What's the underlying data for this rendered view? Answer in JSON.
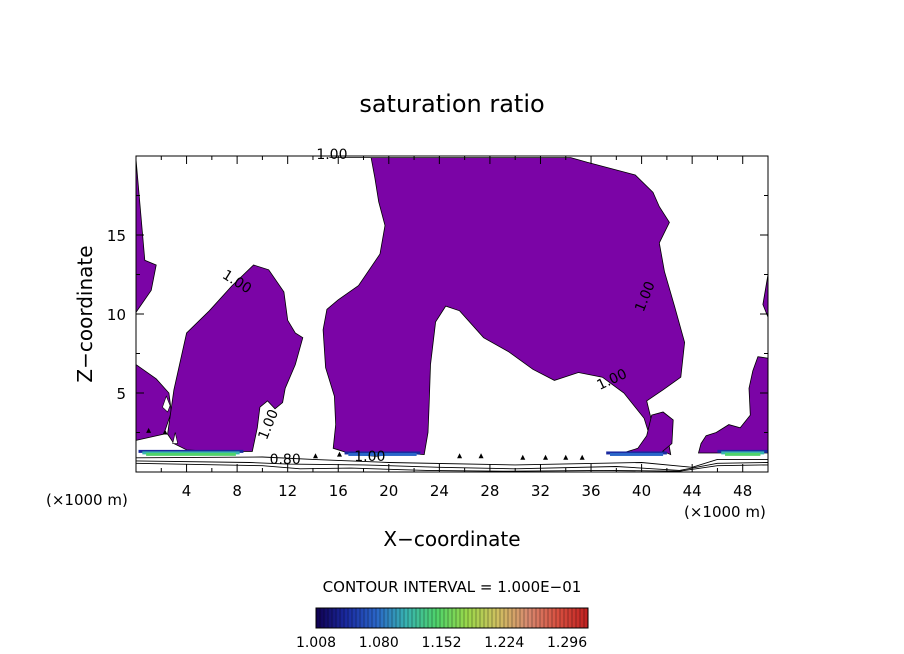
{
  "chart_data": {
    "type": "heatmap",
    "title": "saturation ratio",
    "xlabel": "X−coordinate",
    "ylabel": "Z−coordinate",
    "x_unit_left": "(×1000 m)",
    "x_unit_right": "(×1000 m)",
    "xlim": [
      0,
      50
    ],
    "ylim": [
      0,
      20
    ],
    "x_ticks": [
      4,
      8,
      12,
      16,
      20,
      24,
      28,
      32,
      36,
      40,
      44,
      48
    ],
    "y_ticks": [
      5,
      10,
      15
    ],
    "fill_threshold": 1.008,
    "fill_color": "#7b04a6",
    "contour_labels": [
      {
        "text": "1.00",
        "x": 15.5,
        "z": 19.8,
        "angle": 0
      },
      {
        "text": "1.00",
        "x": 7.8,
        "z": 11.8,
        "angle": -32
      },
      {
        "text": "1.00",
        "x": 40.6,
        "z": 11.0,
        "angle": 68
      },
      {
        "text": "1.00",
        "x": 37.8,
        "z": 5.6,
        "angle": 25
      },
      {
        "text": "1.00",
        "x": 10.8,
        "z": 2.9,
        "angle": 68
      },
      {
        "text": "0.80",
        "x": 11.8,
        "z": 0.5,
        "angle": 0
      },
      {
        "text": "1.00",
        "x": 18.5,
        "z": 0.7,
        "angle": 0
      }
    ],
    "contour_interval_text": "CONTOUR INTERVAL = 1.000E−01",
    "colorbar": {
      "ticks": [
        "1.008",
        "1.080",
        "1.152",
        "1.224",
        "1.296"
      ],
      "min": 1.008,
      "max": 1.32,
      "colors": [
        "#100050",
        "#1a2aa0",
        "#2a66c8",
        "#38b4b0",
        "#4fd36a",
        "#9ad84a",
        "#cfc060",
        "#d88a70",
        "#d85040",
        "#c02020"
      ]
    }
  }
}
